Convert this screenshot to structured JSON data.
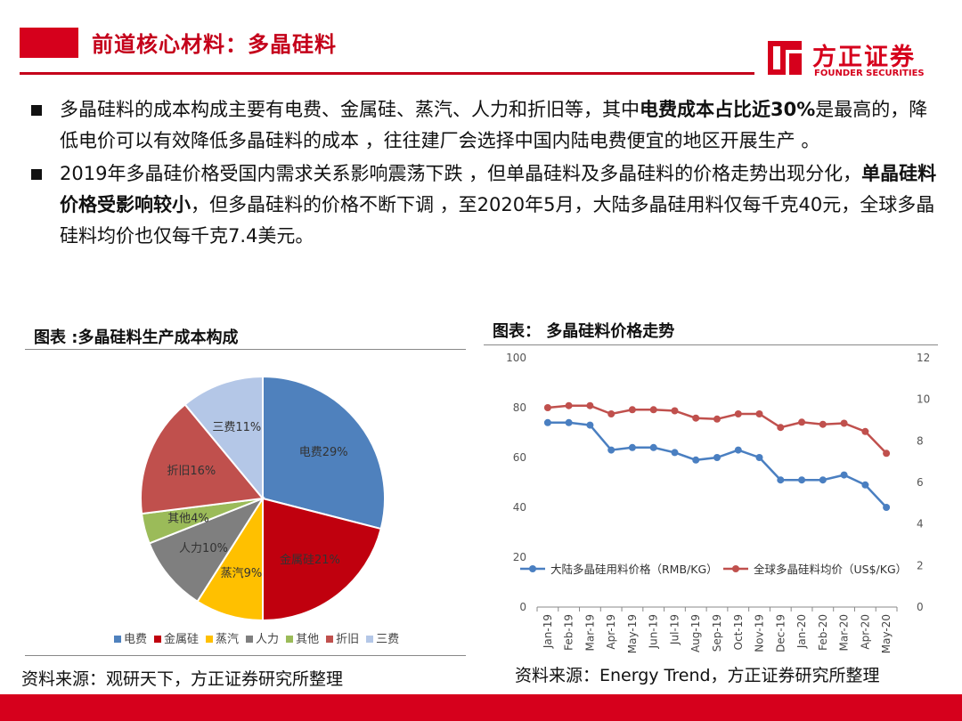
{
  "header": {
    "title": "前道核心材料：多晶硅料"
  },
  "logo": {
    "name_cn": "方正证券",
    "name_en": "FOUNDER SECURITIES",
    "brand_color": "#d6001c"
  },
  "bullets": [
    {
      "parts": [
        {
          "text": "多晶硅料的成本构成主要有电费、金属硅、蒸汽、人力和折旧等，其中",
          "bold": false
        },
        {
          "text": "电费成本占比近30%",
          "bold": true
        },
        {
          "text": "是最高的，降低电价可以有效降低多晶硅料的成本 ，往往建厂会选择中国内陆电费便宜的地区开展生产 。",
          "bold": false
        }
      ]
    },
    {
      "parts": [
        {
          "text": "2019年多晶硅价格受国内需求关系影响震荡下跌 ，但单晶硅料及多晶硅料的价格走势出现分化，",
          "bold": false
        },
        {
          "text": "单晶硅料价格受影响较小",
          "bold": true
        },
        {
          "text": "，但多晶硅料的价格不断下调 ，至2020年5月，大陆多晶硅用料仅每千克40元，全球多晶硅料均价也仅每千克7.4美元。",
          "bold": false
        }
      ]
    }
  ],
  "left_figure": {
    "title": "图表 :多晶硅料生产成本构成",
    "source": "资料来源：观研天下，方正证券研究所整理"
  },
  "right_figure": {
    "title": "图表： 多晶硅料价格走势",
    "source": "资料来源：Energy Trend，方正证券研究所整理"
  },
  "chart_data": [
    {
      "type": "pie",
      "title": "",
      "legend_position": "bottom",
      "slices": [
        {
          "label": "电费",
          "value": 29,
          "display": "电费29%",
          "color": "#4f81bd"
        },
        {
          "label": "金属硅",
          "value": 21,
          "display": "金属硅21%",
          "color": "#c0000e"
        },
        {
          "label": "蒸汽",
          "value": 9,
          "display": "蒸汽9%",
          "color": "#ffc000"
        },
        {
          "label": "人力",
          "value": 10,
          "display": "人力10%",
          "color": "#7f7f7f"
        },
        {
          "label": "其他",
          "value": 4,
          "display": "其他4%",
          "color": "#9bbb59"
        },
        {
          "label": "折旧",
          "value": 16,
          "display": "折旧16%",
          "color": "#c0504d"
        },
        {
          "label": "三费",
          "value": 11,
          "display": "三费11%",
          "color": "#b4c7e7"
        }
      ]
    },
    {
      "type": "line",
      "title": "",
      "legend_position": "inside-bottom",
      "grid": false,
      "categories": [
        "Jan-19",
        "Feb-19",
        "Mar-19",
        "Apr-19",
        "May-19",
        "Jun-19",
        "Jul-19",
        "Aug-19",
        "Sep-19",
        "Oct-19",
        "Nov-19",
        "Dec-19",
        "Jan-20",
        "Feb-20",
        "Mar-20",
        "Apr-20",
        "May-20"
      ],
      "ylim_left": [
        0,
        100
      ],
      "yticks_left": [
        0,
        20,
        40,
        60,
        80,
        100
      ],
      "ylim_right": [
        0,
        12
      ],
      "yticks_right": [
        0,
        2,
        4,
        6,
        8,
        10,
        12
      ],
      "series": [
        {
          "name": "大陆多晶硅用料价格（RMB/KG）",
          "axis": "left",
          "color": "#4a7fc1",
          "values": [
            74,
            74,
            73,
            63,
            64,
            64,
            62,
            59,
            60,
            63,
            60,
            51,
            51,
            51,
            53,
            49,
            40
          ]
        },
        {
          "name": "全球多晶硅料均价（US$/KG）",
          "axis": "right",
          "color": "#c0504d",
          "values": [
            9.6,
            9.7,
            9.7,
            9.3,
            9.5,
            9.5,
            9.45,
            9.1,
            9.05,
            9.3,
            9.3,
            8.65,
            8.9,
            8.8,
            8.85,
            8.45,
            7.4
          ]
        }
      ]
    }
  ]
}
